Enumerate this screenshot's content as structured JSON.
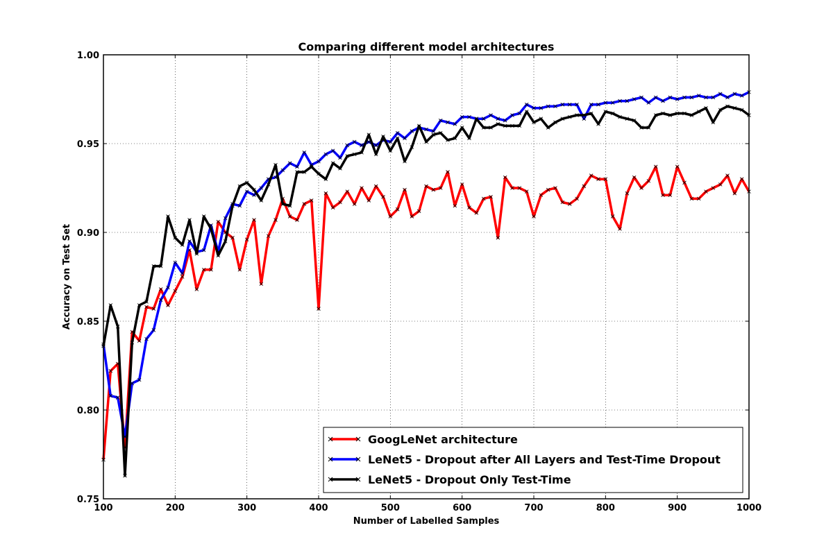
{
  "chart_data": {
    "type": "line",
    "title": "Comparing different model architectures",
    "xlabel": "Number of Labelled Samples",
    "ylabel": "Accuracy on Test Set",
    "xlim": [
      100,
      1000
    ],
    "ylim": [
      0.75,
      1.0
    ],
    "xticks": [
      "100",
      "200",
      "300",
      "400",
      "500",
      "600",
      "700",
      "800",
      "900",
      "1000"
    ],
    "yticks": [
      "0.75",
      "0.80",
      "0.85",
      "0.90",
      "0.95",
      "1.00"
    ],
    "grid": true,
    "legend_position": "lower-right",
    "x": [
      100,
      110,
      120,
      130,
      140,
      150,
      160,
      170,
      180,
      190,
      200,
      210,
      220,
      230,
      240,
      250,
      260,
      270,
      280,
      290,
      300,
      310,
      320,
      330,
      340,
      350,
      360,
      370,
      380,
      390,
      400,
      410,
      420,
      430,
      440,
      450,
      460,
      470,
      480,
      490,
      500,
      510,
      520,
      530,
      540,
      550,
      560,
      570,
      580,
      590,
      600,
      610,
      620,
      630,
      640,
      650,
      660,
      670,
      680,
      690,
      700,
      710,
      720,
      730,
      740,
      750,
      760,
      770,
      780,
      790,
      800,
      810,
      820,
      830,
      840,
      850,
      860,
      870,
      880,
      890,
      900,
      910,
      920,
      930,
      940,
      950,
      960,
      970,
      980,
      990,
      1000
    ],
    "series": [
      {
        "name": "GoogLeNet architecture",
        "color": "#ff0000",
        "values": [
          0.772,
          0.822,
          0.826,
          0.779,
          0.844,
          0.839,
          0.858,
          0.857,
          0.868,
          0.859,
          0.867,
          0.875,
          0.89,
          0.868,
          0.879,
          0.879,
          0.906,
          0.9,
          0.897,
          0.879,
          0.896,
          0.907,
          0.871,
          0.898,
          0.907,
          0.919,
          0.909,
          0.907,
          0.916,
          0.918,
          0.857,
          0.922,
          0.914,
          0.917,
          0.923,
          0.916,
          0.925,
          0.918,
          0.926,
          0.92,
          0.909,
          0.913,
          0.924,
          0.909,
          0.912,
          0.926,
          0.924,
          0.925,
          0.934,
          0.915,
          0.927,
          0.914,
          0.911,
          0.919,
          0.92,
          0.897,
          0.931,
          0.925,
          0.925,
          0.923,
          0.909,
          0.921,
          0.924,
          0.925,
          0.917,
          0.916,
          0.919,
          0.926,
          0.932,
          0.93,
          0.93,
          0.909,
          0.902,
          0.922,
          0.931,
          0.925,
          0.929,
          0.937,
          0.921,
          0.921,
          0.937,
          0.928,
          0.919,
          0.919,
          0.923,
          0.925,
          0.927,
          0.932,
          0.922,
          0.93,
          0.923
        ]
      },
      {
        "name": "LeNet5 - Dropout after All Layers and Test-Time Dropout",
        "color": "#0000ff",
        "values": [
          0.837,
          0.808,
          0.807,
          0.785,
          0.815,
          0.817,
          0.84,
          0.845,
          0.862,
          0.869,
          0.883,
          0.877,
          0.895,
          0.889,
          0.89,
          0.904,
          0.889,
          0.908,
          0.916,
          0.915,
          0.923,
          0.921,
          0.925,
          0.93,
          0.931,
          0.935,
          0.939,
          0.937,
          0.945,
          0.938,
          0.94,
          0.944,
          0.946,
          0.942,
          0.949,
          0.951,
          0.949,
          0.951,
          0.949,
          0.952,
          0.951,
          0.956,
          0.953,
          0.957,
          0.959,
          0.958,
          0.957,
          0.963,
          0.962,
          0.961,
          0.965,
          0.965,
          0.964,
          0.964,
          0.966,
          0.964,
          0.963,
          0.966,
          0.967,
          0.972,
          0.97,
          0.97,
          0.971,
          0.971,
          0.972,
          0.972,
          0.972,
          0.964,
          0.972,
          0.972,
          0.973,
          0.973,
          0.974,
          0.974,
          0.975,
          0.976,
          0.973,
          0.976,
          0.974,
          0.976,
          0.975,
          0.976,
          0.976,
          0.977,
          0.976,
          0.976,
          0.978,
          0.976,
          0.978,
          0.977,
          0.979
        ]
      },
      {
        "name": "LeNet5 - Dropout Only Test-Time",
        "color": "#000000",
        "values": [
          0.836,
          0.859,
          0.847,
          0.763,
          0.838,
          0.859,
          0.861,
          0.881,
          0.881,
          0.909,
          0.897,
          0.893,
          0.907,
          0.888,
          0.909,
          0.902,
          0.887,
          0.895,
          0.915,
          0.926,
          0.928,
          0.924,
          0.918,
          0.927,
          0.938,
          0.916,
          0.915,
          0.934,
          0.934,
          0.937,
          0.933,
          0.93,
          0.939,
          0.936,
          0.943,
          0.944,
          0.945,
          0.955,
          0.944,
          0.954,
          0.946,
          0.953,
          0.94,
          0.948,
          0.96,
          0.951,
          0.955,
          0.956,
          0.952,
          0.953,
          0.959,
          0.953,
          0.964,
          0.959,
          0.959,
          0.961,
          0.96,
          0.96,
          0.96,
          0.968,
          0.962,
          0.964,
          0.959,
          0.962,
          0.964,
          0.965,
          0.966,
          0.966,
          0.967,
          0.961,
          0.968,
          0.967,
          0.965,
          0.964,
          0.963,
          0.959,
          0.959,
          0.966,
          0.967,
          0.966,
          0.967,
          0.967,
          0.966,
          0.968,
          0.97,
          0.962,
          0.969,
          0.971,
          0.97,
          0.969,
          0.966
        ]
      }
    ]
  }
}
